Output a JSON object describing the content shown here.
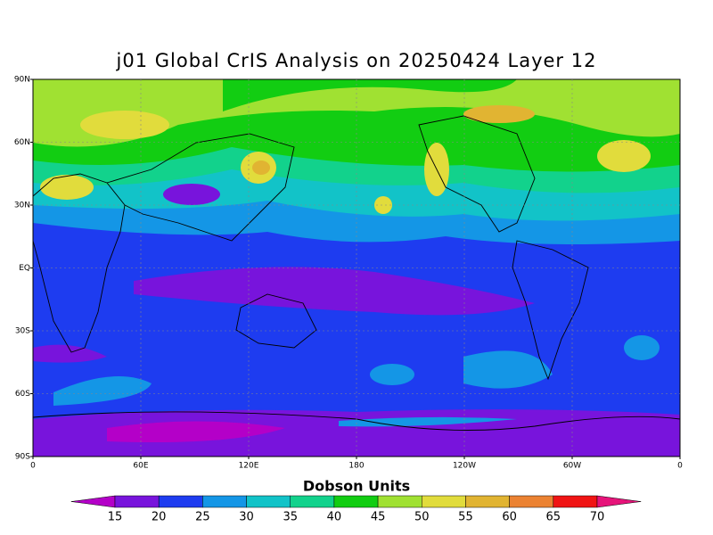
{
  "title": "j01 Global CrIS Analysis on 20250424 Layer 12",
  "lat_labels": [
    "90N",
    "60N",
    "30N",
    "EQ",
    "30S",
    "60S",
    "90S"
  ],
  "lon_labels": [
    "0",
    "60E",
    "120E",
    "180",
    "120W",
    "60W",
    "0"
  ],
  "colorbar": {
    "label": "Dobson Units",
    "levels": [
      15,
      20,
      25,
      30,
      35,
      40,
      45,
      50,
      55,
      60,
      65,
      70
    ],
    "colors": [
      "#b400c8",
      "#7814dc",
      "#1e3cf0",
      "#1496e6",
      "#12c3c8",
      "#12d28c",
      "#12cd12",
      "#a0e132",
      "#e1dc3c",
      "#e1b432",
      "#eb8232",
      "#f01414",
      "#e6147a"
    ]
  }
}
